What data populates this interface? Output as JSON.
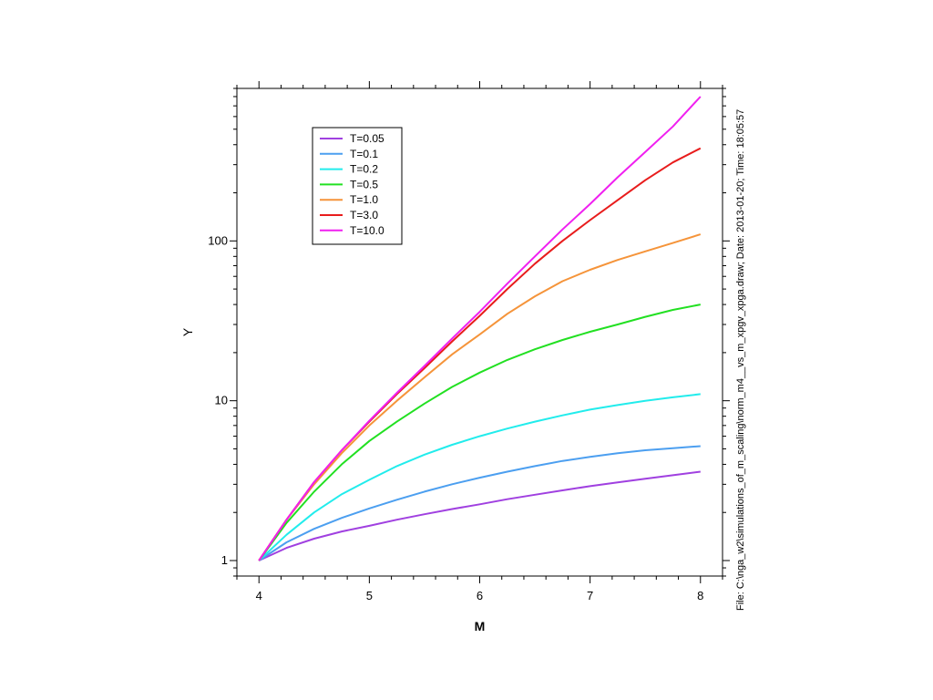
{
  "chart_data": {
    "type": "line",
    "title": "",
    "xlabel": "M",
    "ylabel": "Y",
    "xlim": [
      3.8,
      8.2
    ],
    "ylim": [
      0.8,
      900
    ],
    "y_scale": "log",
    "x_ticks": [
      4,
      5,
      6,
      7,
      8
    ],
    "x_tick_labels": [
      "4",
      "5",
      "6",
      "7",
      "8"
    ],
    "y_ticks": [
      1,
      10,
      100
    ],
    "y_tick_labels": [
      "1",
      "10",
      "100"
    ],
    "grid": false,
    "legend_position": "top-left",
    "x": [
      4.0,
      4.25,
      4.5,
      4.75,
      5.0,
      5.25,
      5.5,
      5.75,
      6.0,
      6.25,
      6.5,
      6.75,
      7.0,
      7.25,
      7.5,
      7.75,
      8.0
    ],
    "series": [
      {
        "name": "T=0.05",
        "color": "#a040e0",
        "values": [
          1.0,
          1.2,
          1.37,
          1.52,
          1.65,
          1.8,
          1.95,
          2.1,
          2.25,
          2.42,
          2.58,
          2.75,
          2.92,
          3.08,
          3.25,
          3.42,
          3.6
        ]
      },
      {
        "name": "T=0.1",
        "color": "#4c9ff0",
        "values": [
          1.0,
          1.3,
          1.58,
          1.85,
          2.12,
          2.4,
          2.7,
          3.0,
          3.3,
          3.6,
          3.9,
          4.2,
          4.45,
          4.7,
          4.9,
          5.05,
          5.2
        ]
      },
      {
        "name": "T=0.2",
        "color": "#22ecec",
        "values": [
          1.0,
          1.45,
          2.0,
          2.6,
          3.2,
          3.9,
          4.6,
          5.3,
          6.0,
          6.7,
          7.4,
          8.1,
          8.8,
          9.4,
          10.0,
          10.5,
          11.0
        ]
      },
      {
        "name": "T=0.5",
        "color": "#22e022",
        "values": [
          1.0,
          1.72,
          2.7,
          4.0,
          5.6,
          7.4,
          9.6,
          12.2,
          15.0,
          18.0,
          21.0,
          24.0,
          27.0,
          30.0,
          33.5,
          37.0,
          40.0
        ]
      },
      {
        "name": "T=1.0",
        "color": "#f5943a",
        "values": [
          1.0,
          1.8,
          3.0,
          4.7,
          7.0,
          10.0,
          14.0,
          19.5,
          26.0,
          35.0,
          45.0,
          56.0,
          66.0,
          76.0,
          86.0,
          97.0,
          110.0
        ]
      },
      {
        "name": "T=3.0",
        "color": "#e81c1c",
        "values": [
          1.0,
          1.8,
          3.1,
          4.9,
          7.4,
          11.0,
          16.0,
          23.5,
          34.0,
          50.0,
          72.0,
          100.0,
          135.0,
          180.0,
          240.0,
          310.0,
          380.0
        ]
      },
      {
        "name": "T=10.0",
        "color": "#f020f0",
        "values": [
          1.0,
          1.8,
          3.1,
          4.9,
          7.5,
          11.2,
          16.5,
          24.5,
          36.0,
          54.0,
          80.0,
          118.0,
          170.0,
          250.0,
          360.0,
          520.0,
          800.0
        ]
      }
    ]
  },
  "side_note": "File: C:\\nga_w2\\simulations_of_m_scaling\\norm_m4__vs_m_xpgv_xpga.draw; Date: 2013-01-20; Time: 18:05:57"
}
